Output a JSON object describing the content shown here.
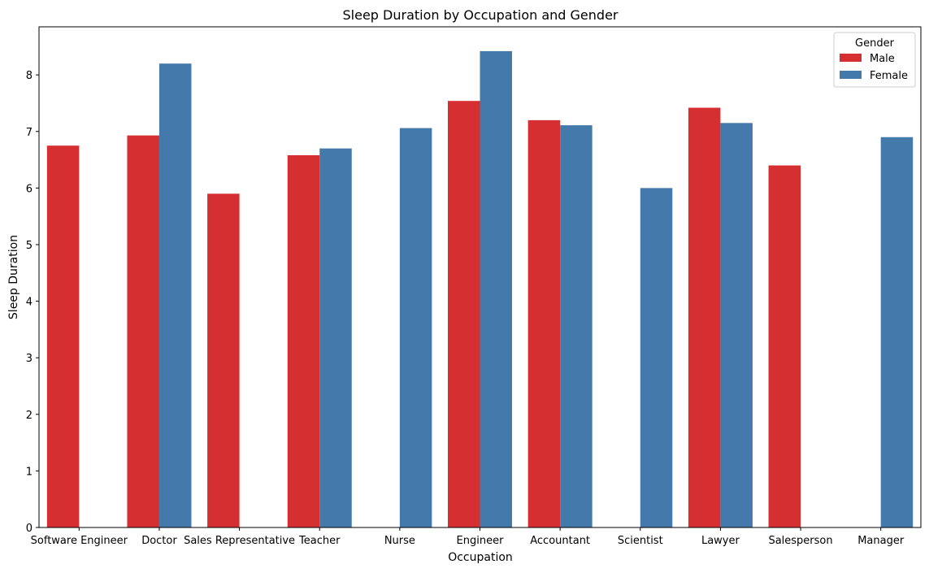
{
  "chart_data": {
    "type": "bar",
    "title": "Sleep Duration by Occupation and Gender",
    "xlabel": "Occupation",
    "ylabel": "Sleep Duration",
    "ylim": [
      0,
      8.85
    ],
    "yticks": [
      0,
      1,
      2,
      3,
      4,
      5,
      6,
      7,
      8
    ],
    "categories": [
      "Software Engineer",
      "Doctor",
      "Sales Representative",
      "Teacher",
      "Nurse",
      "Engineer",
      "Accountant",
      "Scientist",
      "Lawyer",
      "Salesperson",
      "Manager"
    ],
    "series": [
      {
        "name": "Male",
        "color": "#d62f32",
        "values": [
          6.75,
          6.93,
          5.9,
          6.58,
          null,
          7.54,
          7.2,
          null,
          7.42,
          6.4,
          null
        ]
      },
      {
        "name": "Female",
        "color": "#4479ab",
        "values": [
          null,
          8.2,
          null,
          6.7,
          7.06,
          8.42,
          7.11,
          6.0,
          7.15,
          null,
          6.9
        ]
      }
    ],
    "legend": {
      "title": "Gender",
      "placement": "top-right"
    },
    "grid": false
  }
}
